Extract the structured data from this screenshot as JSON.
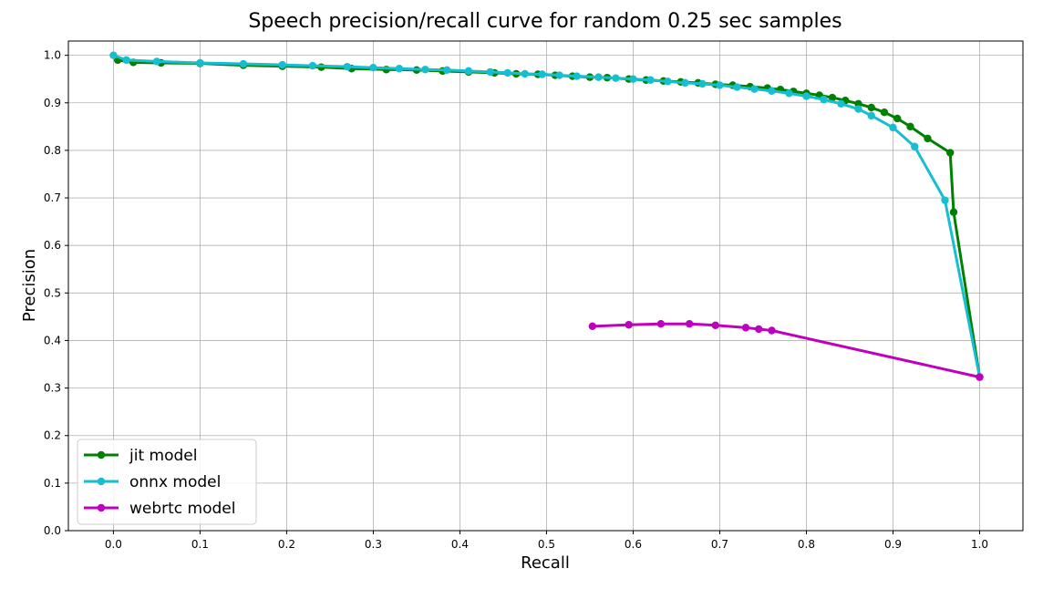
{
  "chart_data": {
    "type": "line",
    "title": "Speech precision/recall curve for random 0.25 sec samples",
    "xlabel": "Recall",
    "ylabel": "Precision",
    "xlim": [
      -0.052,
      1.05
    ],
    "ylim": [
      0.0,
      1.03
    ],
    "xticks": [
      "0.0",
      "0.1",
      "0.2",
      "0.3",
      "0.4",
      "0.5",
      "0.6",
      "0.7",
      "0.8",
      "0.9",
      "1.0"
    ],
    "yticks": [
      "0.0",
      "0.1",
      "0.2",
      "0.3",
      "0.4",
      "0.5",
      "0.6",
      "0.7",
      "0.8",
      "0.9",
      "1.0"
    ],
    "grid": true,
    "legend_position": "lower-left",
    "series": [
      {
        "name": "jit model",
        "color": "#008000",
        "points": [
          [
            0.005,
            0.99
          ],
          [
            0.023,
            0.985
          ],
          [
            0.055,
            0.984
          ],
          [
            0.1,
            0.983
          ],
          [
            0.15,
            0.979
          ],
          [
            0.195,
            0.977
          ],
          [
            0.24,
            0.975
          ],
          [
            0.275,
            0.972
          ],
          [
            0.315,
            0.97
          ],
          [
            0.35,
            0.969
          ],
          [
            0.38,
            0.967
          ],
          [
            0.41,
            0.965
          ],
          [
            0.44,
            0.963
          ],
          [
            0.465,
            0.961
          ],
          [
            0.49,
            0.96
          ],
          [
            0.51,
            0.958
          ],
          [
            0.53,
            0.956
          ],
          [
            0.55,
            0.954
          ],
          [
            0.57,
            0.953
          ],
          [
            0.595,
            0.95
          ],
          [
            0.615,
            0.948
          ],
          [
            0.635,
            0.946
          ],
          [
            0.655,
            0.944
          ],
          [
            0.675,
            0.942
          ],
          [
            0.695,
            0.939
          ],
          [
            0.715,
            0.937
          ],
          [
            0.735,
            0.934
          ],
          [
            0.755,
            0.931
          ],
          [
            0.77,
            0.928
          ],
          [
            0.785,
            0.924
          ],
          [
            0.8,
            0.92
          ],
          [
            0.815,
            0.916
          ],
          [
            0.83,
            0.911
          ],
          [
            0.845,
            0.905
          ],
          [
            0.86,
            0.898
          ],
          [
            0.875,
            0.89
          ],
          [
            0.89,
            0.88
          ],
          [
            0.905,
            0.867
          ],
          [
            0.92,
            0.85
          ],
          [
            0.94,
            0.825
          ],
          [
            0.966,
            0.795
          ],
          [
            0.97,
            0.67
          ],
          [
            1.0,
            0.323
          ]
        ]
      },
      {
        "name": "onnx model",
        "color": "#17becf",
        "points": [
          [
            0.0,
            1.0
          ],
          [
            0.015,
            0.99
          ],
          [
            0.05,
            0.987
          ],
          [
            0.1,
            0.984
          ],
          [
            0.15,
            0.982
          ],
          [
            0.195,
            0.98
          ],
          [
            0.23,
            0.978
          ],
          [
            0.27,
            0.976
          ],
          [
            0.3,
            0.974
          ],
          [
            0.33,
            0.972
          ],
          [
            0.36,
            0.97
          ],
          [
            0.385,
            0.969
          ],
          [
            0.41,
            0.967
          ],
          [
            0.435,
            0.965
          ],
          [
            0.455,
            0.963
          ],
          [
            0.475,
            0.961
          ],
          [
            0.495,
            0.96
          ],
          [
            0.515,
            0.958
          ],
          [
            0.535,
            0.956
          ],
          [
            0.56,
            0.954
          ],
          [
            0.58,
            0.952
          ],
          [
            0.6,
            0.95
          ],
          [
            0.62,
            0.948
          ],
          [
            0.64,
            0.945
          ],
          [
            0.66,
            0.942
          ],
          [
            0.68,
            0.94
          ],
          [
            0.7,
            0.937
          ],
          [
            0.72,
            0.933
          ],
          [
            0.74,
            0.929
          ],
          [
            0.76,
            0.925
          ],
          [
            0.78,
            0.92
          ],
          [
            0.8,
            0.914
          ],
          [
            0.82,
            0.907
          ],
          [
            0.84,
            0.898
          ],
          [
            0.86,
            0.887
          ],
          [
            0.875,
            0.873
          ],
          [
            0.9,
            0.848
          ],
          [
            0.925,
            0.808
          ],
          [
            0.96,
            0.695
          ],
          [
            1.0,
            0.323
          ]
        ]
      },
      {
        "name": "webrtc model",
        "color": "#bf00bf",
        "points": [
          [
            0.553,
            0.43
          ],
          [
            0.595,
            0.433
          ],
          [
            0.632,
            0.435
          ],
          [
            0.665,
            0.435
          ],
          [
            0.695,
            0.432
          ],
          [
            0.73,
            0.427
          ],
          [
            0.745,
            0.424
          ],
          [
            0.76,
            0.421
          ],
          [
            1.0,
            0.323
          ]
        ]
      }
    ]
  }
}
